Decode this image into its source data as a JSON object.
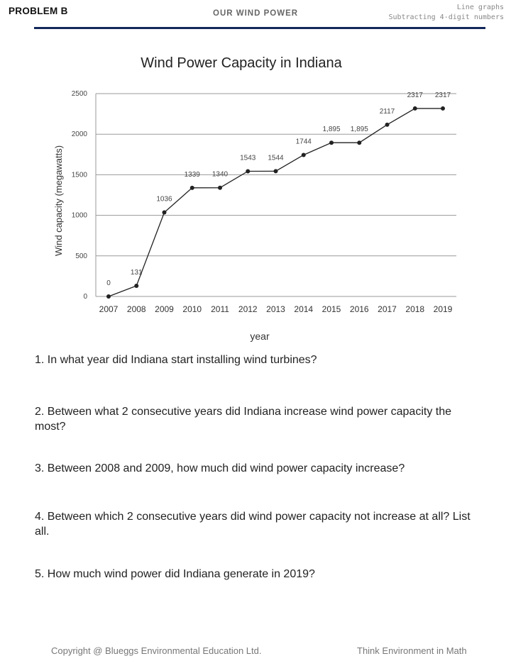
{
  "header": {
    "problem": "PROBLEM B",
    "topic": "OUR WIND POWER",
    "skills": [
      "Line graphs",
      "Subtracting 4-digit numbers"
    ]
  },
  "chart_data": {
    "type": "line",
    "title": "Wind Power Capacity in Indiana",
    "xlabel": "year",
    "ylabel": "Wind capacity (megawatts)",
    "x": [
      "2007",
      "2008",
      "2009",
      "2010",
      "2011",
      "2012",
      "2013",
      "2014",
      "2015",
      "2016",
      "2017",
      "2018",
      "2019"
    ],
    "values": [
      0,
      131,
      1036,
      1339,
      1340,
      1543,
      1544,
      1744,
      1895,
      1895,
      2117,
      2317,
      2317
    ],
    "data_labels": [
      "0",
      "131",
      "1036",
      "1339",
      "1340",
      "1543",
      "1544",
      "1744",
      "1,895",
      "1,895",
      "2117",
      "2317",
      "2317"
    ],
    "yticks": [
      "0",
      "500",
      "1000",
      "1500",
      "2000",
      "2500"
    ],
    "ylim": [
      0,
      2500
    ],
    "grid": true,
    "line_color": "#222222",
    "grid_color": "#9a9a9a"
  },
  "questions": [
    "1. In what year did Indiana start installing wind turbines?",
    "2. Between what 2 consecutive years did Indiana increase wind power capacity the most?",
    "3. Between 2008 and 2009, how much did wind power capacity increase?",
    "4. Between which 2 consecutive years did wind power capacity not increase at all? List all.",
    "5. How much wind power did Indiana generate in 2019?"
  ],
  "footer": {
    "copyright": "Copyright @ Blueggs Environmental Education Ltd.",
    "tagline": "Think Environment in Math"
  }
}
